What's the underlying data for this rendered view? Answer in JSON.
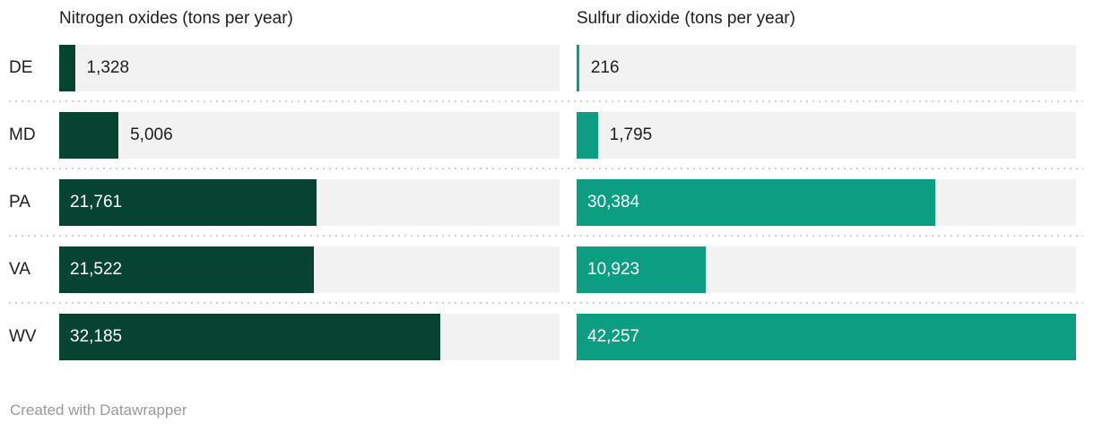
{
  "chart_data": {
    "type": "bar",
    "layout": "horizontal-split-columns",
    "categories": [
      "DE",
      "MD",
      "PA",
      "VA",
      "WV"
    ],
    "series": [
      {
        "name": "Nitrogen oxides (tons per year)",
        "values": [
          1328,
          5006,
          21761,
          21522,
          32185
        ],
        "labels": [
          "1,328",
          "5,006",
          "21,761",
          "21,522",
          "32,185"
        ],
        "color": "#074331"
      },
      {
        "name": "Sulfur dioxide (tons per year)",
        "values": [
          216,
          1795,
          30384,
          10923,
          42257
        ],
        "labels": [
          "216",
          "1,795",
          "30,384",
          "10,923",
          "42,257"
        ],
        "color": "#0c9e82"
      }
    ],
    "xlim": [
      0,
      42257
    ],
    "grid": false,
    "legend_position": "column-headers",
    "track_color": "#f2f2f2",
    "label_color": "#1d1d1d",
    "value_inside_color": "#ffffff"
  },
  "footer": {
    "credit": "Created with Datawrapper"
  }
}
